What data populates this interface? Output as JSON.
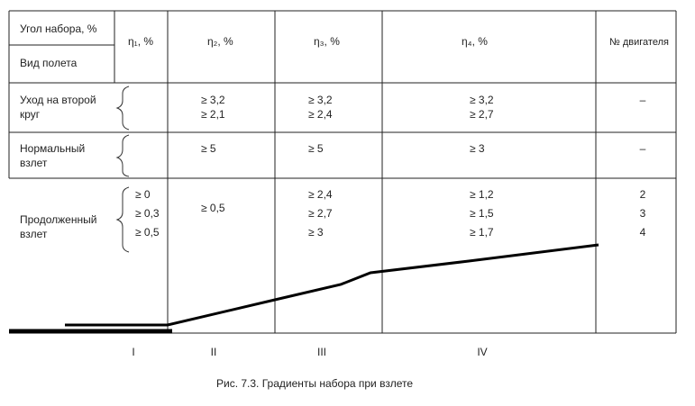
{
  "header": {
    "angle": "Угол набора, %",
    "flight": "Вид полета",
    "eta1": "η₁, %",
    "eta2": "η₂, %",
    "eta3": "η₃, %",
    "eta4": "η₄, %",
    "engines": "№ двигателя"
  },
  "rows": [
    {
      "label": [
        "Уход на второй",
        "круг"
      ],
      "eta2": [
        "≥ 3,2",
        "≥ 2,1"
      ],
      "eta3": [
        "≥ 3,2",
        "≥ 2,4"
      ],
      "eta4": [
        "≥ 3,2",
        "≥ 2,7"
      ],
      "engines": [
        "–"
      ]
    },
    {
      "label": [
        "Нормальный",
        "взлет"
      ],
      "eta2": [
        "≥ 5"
      ],
      "eta3": [
        "≥ 5"
      ],
      "eta4": [
        "≥ 3"
      ],
      "engines": [
        "–"
      ]
    },
    {
      "label": [
        "Продолженный",
        "взлет"
      ],
      "eta1": [
        "≥ 0",
        "≥ 0,3",
        "≥ 0,5"
      ],
      "eta2": [
        "≥ 0,5"
      ],
      "eta3": [
        "≥ 2,4",
        "≥ 2,7",
        "≥ 3"
      ],
      "eta4": [
        "≥ 1,2",
        "≥ 1,5",
        "≥ 1,7"
      ],
      "engines": [
        "2",
        "3",
        "4"
      ]
    }
  ],
  "segments": [
    "I",
    "II",
    "III",
    "IV"
  ],
  "caption": "Рис. 7.3. Градиенты набора при взлете"
}
